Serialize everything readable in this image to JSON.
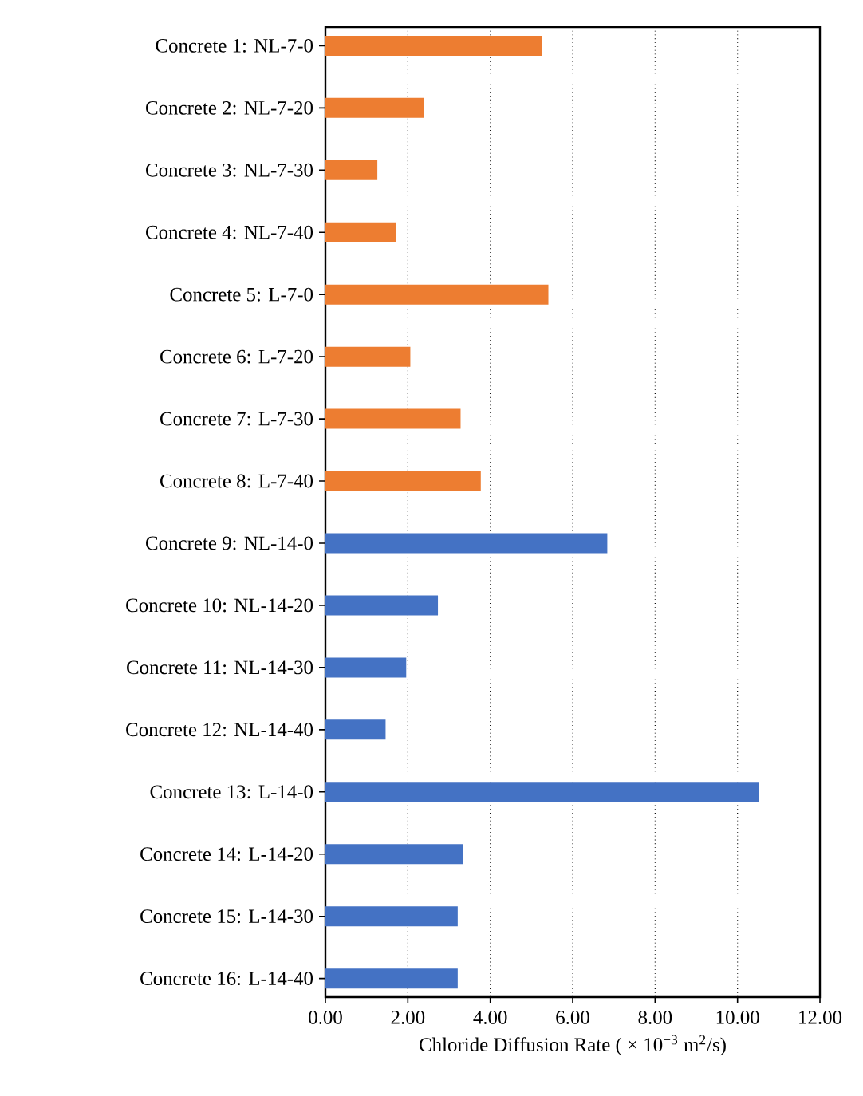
{
  "chart_data": {
    "type": "bar",
    "orientation": "horizontal",
    "categories": [
      "Concrete 1: NL-7-0",
      "Concrete 2: NL-7-20",
      "Concrete 3: NL-7-30",
      "Concrete 4: NL-7-40",
      "Concrete 5: L-7-0",
      "Concrete 6: L-7-20",
      "Concrete 7: L-7-30",
      "Concrete 8: L-7-40",
      "Concrete 9: NL-14-0",
      "Concrete 10: NL-14-20",
      "Concrete 11: NL-14-30",
      "Concrete 12: NL-14-40",
      "Concrete 13: L-14-0",
      "Concrete 14: L-14-20",
      "Concrete 15: L-14-30",
      "Concrete 16: L-14-40"
    ],
    "values": [
      5.26,
      2.4,
      1.26,
      1.72,
      5.41,
      2.06,
      3.28,
      3.77,
      6.84,
      2.73,
      1.96,
      1.46,
      10.52,
      3.33,
      3.21,
      3.21
    ],
    "colors": [
      "#ed7d31",
      "#ed7d31",
      "#ed7d31",
      "#ed7d31",
      "#ed7d31",
      "#ed7d31",
      "#ed7d31",
      "#ed7d31",
      "#4472c4",
      "#4472c4",
      "#4472c4",
      "#4472c4",
      "#4472c4",
      "#4472c4",
      "#4472c4",
      "#4472c4"
    ],
    "xlabel": "Chloride Diffusion Rate ( × 10$^{−3}$ m$^{2}$/s)",
    "xlim": [
      0,
      12
    ],
    "xticks": [
      {
        "value": 0,
        "label": "0.00"
      },
      {
        "value": 2,
        "label": "2.00"
      },
      {
        "value": 4,
        "label": "4.00"
      },
      {
        "value": 6,
        "label": "6.00"
      },
      {
        "value": 8,
        "label": "8.00"
      },
      {
        "value": 10,
        "label": "10.00"
      },
      {
        "value": 12,
        "label": "12.00"
      }
    ],
    "grid": "x"
  }
}
